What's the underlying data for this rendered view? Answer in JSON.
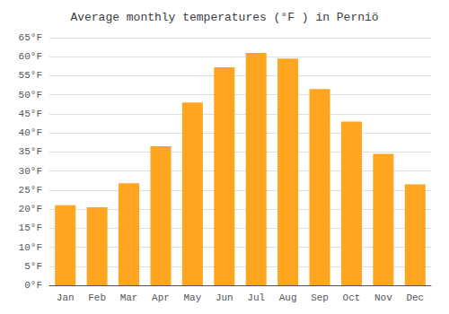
{
  "chart_data": {
    "type": "bar",
    "title": "Average monthly temperatures (°F ) in Perniö",
    "categories": [
      "Jan",
      "Feb",
      "Mar",
      "Apr",
      "May",
      "Jun",
      "Jul",
      "Aug",
      "Sep",
      "Oct",
      "Nov",
      "Dec"
    ],
    "values": [
      21.0,
      20.5,
      26.8,
      36.5,
      48.0,
      57.2,
      61.0,
      59.5,
      51.5,
      43.0,
      34.5,
      26.5
    ],
    "color": "#FFA520",
    "ylim": [
      0,
      65
    ],
    "yticks": [
      {
        "value": 0,
        "label": "0°F"
      },
      {
        "value": 5,
        "label": "5°F"
      },
      {
        "value": 10,
        "label": "10°F"
      },
      {
        "value": 15,
        "label": "15°F"
      },
      {
        "value": 20,
        "label": "20°F"
      },
      {
        "value": 25,
        "label": "25°F"
      },
      {
        "value": 30,
        "label": "30°F"
      },
      {
        "value": 35,
        "label": "35°F"
      },
      {
        "value": 40,
        "label": "40°F"
      },
      {
        "value": 45,
        "label": "45°F"
      },
      {
        "value": 50,
        "label": "50°F"
      },
      {
        "value": 55,
        "label": "55°F"
      },
      {
        "value": 60,
        "label": "60°F"
      },
      {
        "value": 65,
        "label": "65°F"
      }
    ],
    "grid": true
  }
}
